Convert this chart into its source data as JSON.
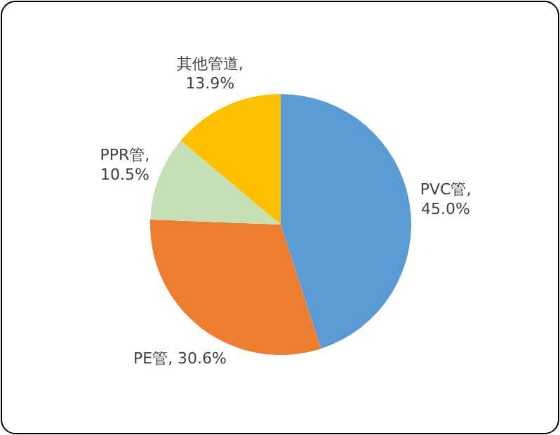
{
  "chart_data": {
    "type": "pie",
    "categories": [
      "PVC管",
      "PE管",
      "PPR管",
      "其他管道"
    ],
    "values": [
      45.0,
      30.6,
      10.5,
      13.9
    ],
    "colors": [
      "#5b9bd5",
      "#ed7d31",
      "#c5e0b4",
      "#ffc000"
    ],
    "value_labels": [
      ", 45.0%",
      ", 30.6%",
      ", 10.5%",
      ", 13.9%"
    ],
    "legend": false
  }
}
